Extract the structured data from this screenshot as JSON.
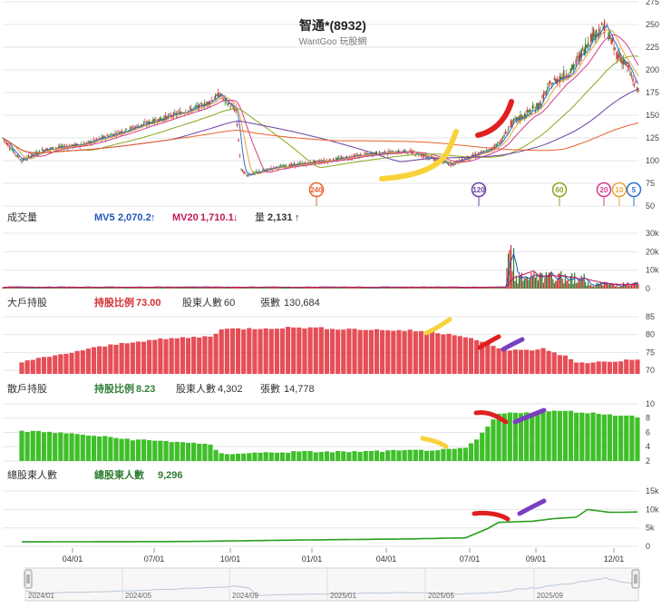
{
  "chart_data": {
    "type": "stock-multi-panel",
    "title": "智通*(8932)",
    "subtitle": "WantGoo 玩股網",
    "price": {
      "y_ticks": [
        "275",
        "250",
        "225",
        "200",
        "175",
        "150",
        "125",
        "100",
        "75",
        "50"
      ],
      "ylim": [
        50,
        275
      ],
      "ma_badges": [
        "240",
        "120",
        "60",
        "20",
        "10",
        "5"
      ],
      "ma_badge_colors": [
        "#e8622b",
        "#6b3fa0",
        "#8aa61c",
        "#d43c8c",
        "#e8a23a",
        "#2f6fd0"
      ]
    },
    "volume": {
      "label": "成交量",
      "mv5_label": "MV5",
      "mv5_value": "2,070.2",
      "mv5_arrow": "↑",
      "mv20_label": "MV20",
      "mv20_value": "1,710.1",
      "mv20_arrow": "↓",
      "vol_label": "量",
      "vol_value": "2,131",
      "vol_arrow": "↑",
      "y_ticks": [
        "30k",
        "20k",
        "10k",
        "0"
      ]
    },
    "big_holders": {
      "label": "大戶持股",
      "ratio_label": "持股比例",
      "ratio_value": "73.00",
      "holders_label": "股東人數",
      "holders_value": "60",
      "shares_label": "張數",
      "shares_value": "130,684",
      "y_ticks": [
        "85",
        "80",
        "75",
        "70"
      ]
    },
    "retail_holders": {
      "label": "散戶持股",
      "ratio_label": "持股比例",
      "ratio_value": "8.23",
      "holders_label": "股東人數",
      "holders_value": "4,302",
      "shares_label": "張數",
      "shares_value": "14,778",
      "y_ticks": [
        "10",
        "8",
        "6",
        "4",
        "2"
      ]
    },
    "total_holders": {
      "label": "總股東人數",
      "series_label": "總股東人數",
      "series_value": "9,296",
      "y_ticks": [
        "15k",
        "10k",
        "5k",
        "0"
      ]
    },
    "x_ticks": [
      "04/01",
      "07/01",
      "10/01",
      "01/01",
      "04/01",
      "07/01",
      "09/01",
      "12/01"
    ],
    "navigator_ticks": [
      "2024/01",
      "2024/05",
      "2024/09",
      "2025/01",
      "2025/05",
      "2025/09"
    ]
  },
  "colors": {
    "up": "#d32f2f",
    "down": "#2e7d32",
    "big_bar": "#e0303a",
    "retail_bar": "#3fbf2a",
    "total_line": "#2a9d1e",
    "mv5": "#1e56b8",
    "mv20": "#c2185b",
    "grid": "#e6e6e6"
  }
}
